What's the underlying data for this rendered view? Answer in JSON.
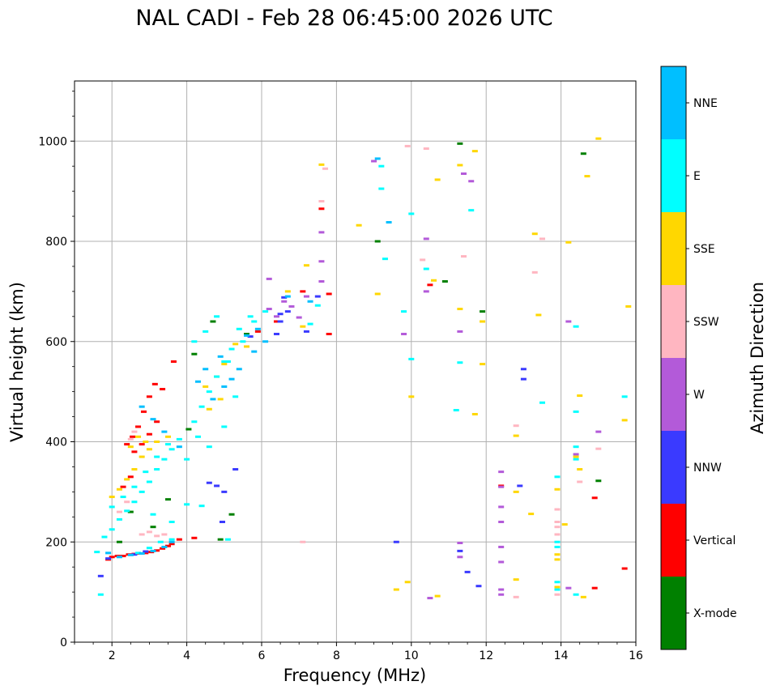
{
  "chart_data": {
    "type": "scatter",
    "title": "NAL CADI - Feb 28 06:45:00 2026 UTC",
    "xlabel": "Frequency (MHz)",
    "ylabel": "Virtual height (km)",
    "xlim": [
      1,
      16
    ],
    "ylim": [
      0,
      1120
    ],
    "xticks": [
      "2",
      "4",
      "6",
      "8",
      "10",
      "12",
      "14",
      "16"
    ],
    "yticks": [
      "0",
      "200",
      "400",
      "600",
      "800",
      "1000"
    ],
    "grid": true,
    "colorbar": {
      "label": "Azimuth Direction",
      "categories": [
        "X-mode",
        "Vertical",
        "NNW",
        "W",
        "SSW",
        "SSE",
        "E",
        "NNE"
      ],
      "colors": [
        "#008000",
        "#ff0000",
        "#3a3aff",
        "#b35ad9",
        "#ffb6c1",
        "#ffd700",
        "#00ffff",
        "#00bfff"
      ]
    },
    "series": [
      {
        "name": "X-mode",
        "color": "#008000",
        "points": [
          [
            4.05,
            425
          ],
          [
            3.1,
            230
          ],
          [
            2.5,
            260
          ],
          [
            4.9,
            205
          ],
          [
            5.2,
            255
          ],
          [
            4.2,
            575
          ],
          [
            4.7,
            640
          ],
          [
            9.1,
            800
          ],
          [
            10.9,
            720
          ],
          [
            11.9,
            660
          ],
          [
            11.3,
            995
          ],
          [
            14.6,
            975
          ],
          [
            15,
            322
          ],
          [
            5.6,
            615
          ],
          [
            2.2,
            200
          ],
          [
            3.5,
            285
          ]
        ]
      },
      {
        "name": "Vertical",
        "color": "#ff0000",
        "points": [
          [
            1.9,
            165
          ],
          [
            2.0,
            170
          ],
          [
            2.15,
            172
          ],
          [
            2.3,
            172
          ],
          [
            2.45,
            175
          ],
          [
            2.6,
            176
          ],
          [
            2.75,
            177
          ],
          [
            2.9,
            178
          ],
          [
            3.05,
            180
          ],
          [
            3.2,
            183
          ],
          [
            3.35,
            187
          ],
          [
            3.5,
            192
          ],
          [
            3.6,
            196
          ],
          [
            3.8,
            205
          ],
          [
            4.2,
            208
          ],
          [
            2.4,
            395
          ],
          [
            2.55,
            410
          ],
          [
            2.7,
            430
          ],
          [
            2.85,
            460
          ],
          [
            3.0,
            490
          ],
          [
            3.15,
            515
          ],
          [
            3.35,
            505
          ],
          [
            3.65,
            560
          ],
          [
            2.6,
            380
          ],
          [
            2.8,
            395
          ],
          [
            3.0,
            415
          ],
          [
            3.2,
            440
          ],
          [
            2.3,
            310
          ],
          [
            2.5,
            330
          ],
          [
            7.6,
            865
          ],
          [
            7.8,
            695
          ],
          [
            7.8,
            615
          ],
          [
            7.1,
            700
          ],
          [
            10.5,
            713
          ],
          [
            12.4,
            312
          ],
          [
            15.7,
            147
          ],
          [
            14.9,
            108
          ],
          [
            14.9,
            288
          ],
          [
            5.9,
            620
          ],
          [
            6.4,
            640
          ]
        ]
      },
      {
        "name": "NNW",
        "color": "#3a3aff",
        "points": [
          [
            4.6,
            318
          ],
          [
            4.8,
            312
          ],
          [
            5.0,
            300
          ],
          [
            5.3,
            345
          ],
          [
            4.95,
            240
          ],
          [
            1.7,
            132
          ],
          [
            1.9,
            167
          ],
          [
            5.7,
            610
          ],
          [
            6.5,
            655
          ],
          [
            6.7,
            660
          ],
          [
            6.5,
            640
          ],
          [
            6.4,
            615
          ],
          [
            7.2,
            620
          ],
          [
            6.6,
            688
          ],
          [
            7.5,
            690
          ],
          [
            9.6,
            200
          ],
          [
            13.0,
            545
          ],
          [
            13.0,
            525
          ],
          [
            11.5,
            140
          ],
          [
            11.8,
            112
          ],
          [
            12.9,
            312
          ],
          [
            11.3,
            182
          ],
          [
            2.6,
            175
          ],
          [
            2.9,
            181
          ]
        ]
      },
      {
        "name": "W",
        "color": "#b35ad9",
        "points": [
          [
            12.4,
            340
          ],
          [
            12.4,
            310
          ],
          [
            12.4,
            270
          ],
          [
            12.4,
            240
          ],
          [
            12.4,
            190
          ],
          [
            12.4,
            160
          ],
          [
            12.4,
            105
          ],
          [
            12.4,
            95
          ],
          [
            6.2,
            665
          ],
          [
            6.4,
            650
          ],
          [
            6.6,
            680
          ],
          [
            6.8,
            670
          ],
          [
            7.0,
            648
          ],
          [
            7.6,
            760
          ],
          [
            7.6,
            720
          ],
          [
            7.6,
            818
          ],
          [
            7.2,
            690
          ],
          [
            9.0,
            960
          ],
          [
            9.8,
            615
          ],
          [
            10.4,
            700
          ],
          [
            10.4,
            805
          ],
          [
            11.6,
            920
          ],
          [
            11.3,
            620
          ],
          [
            11.4,
            935
          ],
          [
            11.3,
            198
          ],
          [
            11.3,
            170
          ],
          [
            14.2,
            640
          ],
          [
            14.4,
            375
          ],
          [
            14.2,
            108
          ],
          [
            15.0,
            420
          ],
          [
            10.5,
            88
          ],
          [
            6.2,
            725
          ]
        ]
      },
      {
        "name": "SSW",
        "color": "#ffb6c1",
        "points": [
          [
            13.9,
            265
          ],
          [
            13.9,
            240
          ],
          [
            13.9,
            230
          ],
          [
            13.9,
            215
          ],
          [
            13.9,
            95
          ],
          [
            14.5,
            320
          ],
          [
            2.8,
            215
          ],
          [
            3.0,
            220
          ],
          [
            3.2,
            212
          ],
          [
            3.4,
            215
          ],
          [
            2.5,
            405
          ],
          [
            2.6,
            420
          ],
          [
            2.2,
            260
          ],
          [
            2.4,
            280
          ],
          [
            12.8,
            432
          ],
          [
            12.8,
            90
          ],
          [
            10.3,
            763
          ],
          [
            10.4,
            985
          ],
          [
            9.9,
            990
          ],
          [
            7.1,
            200
          ],
          [
            13.3,
            738
          ],
          [
            13.5,
            805
          ],
          [
            11.4,
            770
          ],
          [
            15.0,
            386
          ],
          [
            7.7,
            945
          ],
          [
            7.6,
            880
          ]
        ]
      },
      {
        "name": "SSE",
        "color": "#ffd700",
        "points": [
          [
            13.9,
            305
          ],
          [
            13.9,
            175
          ],
          [
            13.9,
            165
          ],
          [
            14.1,
            235
          ],
          [
            13.9,
            110
          ],
          [
            14.6,
            90
          ],
          [
            14.5,
            345
          ],
          [
            14.4,
            370
          ],
          [
            12.8,
            412
          ],
          [
            12.8,
            300
          ],
          [
            12.8,
            125
          ],
          [
            13.2,
            256
          ],
          [
            13.4,
            653
          ],
          [
            11.7,
            455
          ],
          [
            11.9,
            555
          ],
          [
            11.9,
            640
          ],
          [
            11.3,
            665
          ],
          [
            10.6,
            722
          ],
          [
            10.7,
            923
          ],
          [
            11.3,
            952
          ],
          [
            11.7,
            980
          ],
          [
            14.7,
            930
          ],
          [
            15.0,
            1005
          ],
          [
            15.8,
            670
          ],
          [
            15.7,
            443
          ],
          [
            14.5,
            492
          ],
          [
            13.3,
            815
          ],
          [
            10.0,
            490
          ],
          [
            9.6,
            105
          ],
          [
            9.9,
            120
          ],
          [
            8.6,
            832
          ],
          [
            9.1,
            695
          ],
          [
            2.0,
            290
          ],
          [
            2.2,
            305
          ],
          [
            2.4,
            325
          ],
          [
            2.6,
            345
          ],
          [
            2.8,
            370
          ],
          [
            3.0,
            385
          ],
          [
            3.2,
            400
          ],
          [
            3.5,
            410
          ],
          [
            2.9,
            400
          ],
          [
            2.5,
            390
          ],
          [
            2.7,
            410
          ],
          [
            4.5,
            510
          ],
          [
            4.8,
            530
          ],
          [
            5.0,
            555
          ],
          [
            4.6,
            465
          ],
          [
            4.9,
            485
          ],
          [
            5.3,
            595
          ],
          [
            5.6,
            590
          ],
          [
            7.1,
            630
          ],
          [
            7.2,
            752
          ],
          [
            7.6,
            953
          ],
          [
            14.2,
            798
          ],
          [
            10.7,
            92
          ],
          [
            6.7,
            700
          ]
        ]
      },
      {
        "name": "E",
        "color": "#00ffff",
        "points": [
          [
            13.9,
            330
          ],
          [
            13.9,
            200
          ],
          [
            13.9,
            190
          ],
          [
            13.9,
            120
          ],
          [
            13.9,
            105
          ],
          [
            14.4,
            460
          ],
          [
            14.4,
            365
          ],
          [
            14.4,
            390
          ],
          [
            14.4,
            95
          ],
          [
            14.4,
            630
          ],
          [
            13.5,
            478
          ],
          [
            11.2,
            463
          ],
          [
            11.6,
            862
          ],
          [
            10.0,
            855
          ],
          [
            9.2,
            905
          ],
          [
            9.2,
            950
          ],
          [
            9.3,
            765
          ],
          [
            10.0,
            565
          ],
          [
            10.4,
            745
          ],
          [
            9.8,
            660
          ],
          [
            11.3,
            558
          ],
          [
            15.7,
            490
          ],
          [
            1.7,
            95
          ],
          [
            1.6,
            180
          ],
          [
            1.8,
            210
          ],
          [
            2.0,
            225
          ],
          [
            2.2,
            245
          ],
          [
            2.4,
            262
          ],
          [
            2.6,
            280
          ],
          [
            2.8,
            300
          ],
          [
            3.0,
            320
          ],
          [
            3.2,
            345
          ],
          [
            3.4,
            365
          ],
          [
            3.6,
            385
          ],
          [
            3.8,
            405
          ],
          [
            2.0,
            270
          ],
          [
            2.3,
            290
          ],
          [
            2.6,
            310
          ],
          [
            2.9,
            340
          ],
          [
            3.2,
            370
          ],
          [
            3.5,
            395
          ],
          [
            4.0,
            365
          ],
          [
            4.3,
            410
          ],
          [
            4.2,
            440
          ],
          [
            4.4,
            470
          ],
          [
            4.6,
            500
          ],
          [
            4.8,
            530
          ],
          [
            5.0,
            560
          ],
          [
            5.2,
            585
          ],
          [
            5.5,
            600
          ],
          [
            5.8,
            640
          ],
          [
            6.1,
            660
          ],
          [
            5.3,
            490
          ],
          [
            5.0,
            430
          ],
          [
            4.6,
            390
          ],
          [
            4.2,
            600
          ],
          [
            4.5,
            620
          ],
          [
            4.8,
            650
          ],
          [
            5.1,
            560
          ],
          [
            5.4,
            625
          ],
          [
            5.7,
            650
          ],
          [
            7.5,
            672
          ],
          [
            7.3,
            635
          ],
          [
            2.7,
            178
          ],
          [
            3.0,
            188
          ],
          [
            3.3,
            200
          ],
          [
            3.6,
            205
          ],
          [
            5.1,
            205
          ],
          [
            4.0,
            275
          ],
          [
            4.4,
            272
          ],
          [
            3.1,
            255
          ],
          [
            3.6,
            240
          ]
        ]
      },
      {
        "name": "NNE",
        "color": "#00bfff",
        "points": [
          [
            9.4,
            838
          ],
          [
            9.1,
            965
          ],
          [
            2.2,
            170
          ],
          [
            2.5,
            174
          ],
          [
            2.8,
            177
          ],
          [
            3.1,
            182
          ],
          [
            3.4,
            190
          ],
          [
            3.6,
            200
          ],
          [
            1.9,
            178
          ],
          [
            4.3,
            520
          ],
          [
            4.7,
            485
          ],
          [
            5.0,
            510
          ],
          [
            5.4,
            545
          ],
          [
            5.8,
            580
          ],
          [
            6.1,
            600
          ],
          [
            4.5,
            545
          ],
          [
            4.9,
            570
          ],
          [
            5.2,
            525
          ],
          [
            3.8,
            390
          ],
          [
            3.4,
            420
          ],
          [
            3.1,
            445
          ],
          [
            2.8,
            470
          ],
          [
            5.6,
            612
          ],
          [
            5.9,
            625
          ],
          [
            6.7,
            690
          ],
          [
            7.3,
            680
          ]
        ]
      }
    ]
  }
}
